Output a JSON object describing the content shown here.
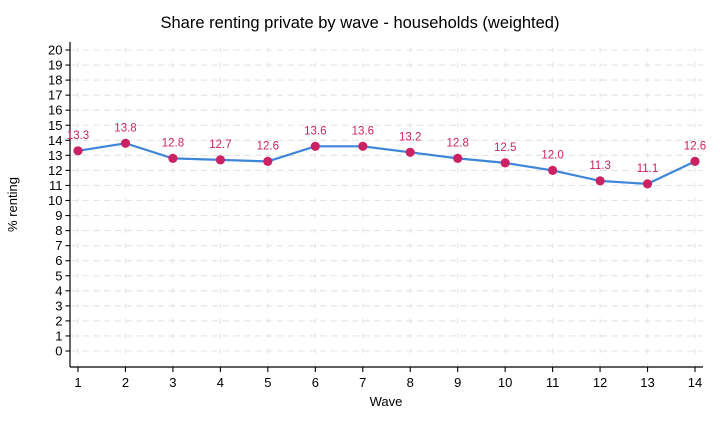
{
  "chart_data": {
    "type": "line",
    "title": "Share renting private by wave - households (weighted)",
    "xlabel": "Wave",
    "ylabel": "% renting",
    "categories": [
      1,
      2,
      3,
      4,
      5,
      6,
      7,
      8,
      9,
      10,
      11,
      12,
      13,
      14
    ],
    "values": [
      13.3,
      13.8,
      12.8,
      12.7,
      12.6,
      13.6,
      13.6,
      13.2,
      12.8,
      12.5,
      12.0,
      11.3,
      11.1,
      12.6
    ],
    "data_labels": [
      "13.3",
      "13.8",
      "12.8",
      "12.7",
      "12.6",
      "13.6",
      "13.6",
      "13.2",
      "12.8",
      "12.5",
      "12.0",
      "11.3",
      "11.1",
      "12.6"
    ],
    "ylim": [
      0,
      20
    ],
    "ytick_step": 1,
    "grid": true,
    "legend_position": "none",
    "colors": {
      "line": "#3e86d8",
      "marker": "#cb2263",
      "data_label": "#cb2263",
      "axis": "#000000",
      "grid": "#e4e4e4",
      "background": "#ffffff",
      "text": "#000000"
    }
  }
}
